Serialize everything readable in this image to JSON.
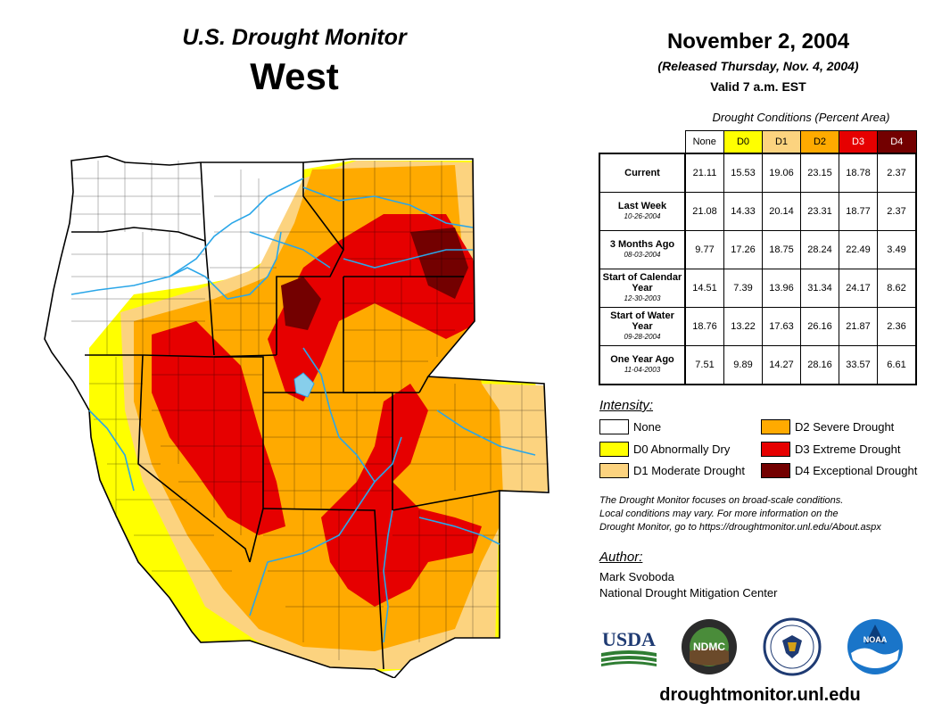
{
  "header": {
    "product": "U.S. Drought Monitor",
    "region": "West",
    "date": "November 2, 2004",
    "released": "(Released Thursday, Nov. 4, 2004)",
    "valid": "Valid 7 a.m. EST"
  },
  "table": {
    "caption": "Drought Conditions (Percent Area)",
    "columns": [
      "None",
      "D0",
      "D1",
      "D2",
      "D3",
      "D4"
    ],
    "column_colors": [
      "#ffffff",
      "#ffff00",
      "#fcd37f",
      "#ffaa00",
      "#e60000",
      "#730000"
    ],
    "rows": [
      {
        "label": "Current",
        "date": "",
        "values": [
          "21.11",
          "15.53",
          "19.06",
          "23.15",
          "18.78",
          "2.37"
        ]
      },
      {
        "label": "Last Week",
        "date": "10-26-2004",
        "values": [
          "21.08",
          "14.33",
          "20.14",
          "23.31",
          "18.77",
          "2.37"
        ]
      },
      {
        "label": "3 Months Ago",
        "date": "08-03-2004",
        "values": [
          "9.77",
          "17.26",
          "18.75",
          "28.24",
          "22.49",
          "3.49"
        ]
      },
      {
        "label": "Start of Calendar Year",
        "date": "12-30-2003",
        "values": [
          "14.51",
          "7.39",
          "13.96",
          "31.34",
          "24.17",
          "8.62"
        ]
      },
      {
        "label": "Start of Water Year",
        "date": "09-28-2004",
        "values": [
          "18.76",
          "13.22",
          "17.63",
          "26.16",
          "21.87",
          "2.36"
        ]
      },
      {
        "label": "One Year Ago",
        "date": "11-04-2003",
        "values": [
          "7.51",
          "9.89",
          "14.27",
          "28.16",
          "33.57",
          "6.61"
        ]
      }
    ]
  },
  "legend": {
    "title": "Intensity:",
    "items": [
      {
        "label": "None",
        "color": "#ffffff"
      },
      {
        "label": "D0 Abnormally Dry",
        "color": "#ffff00"
      },
      {
        "label": "D1 Moderate Drought",
        "color": "#fcd37f"
      },
      {
        "label": "D2 Severe Drought",
        "color": "#ffaa00"
      },
      {
        "label": "D3 Extreme Drought",
        "color": "#e60000"
      },
      {
        "label": "D4 Exceptional Drought",
        "color": "#730000"
      }
    ]
  },
  "note": {
    "line1": "The Drought Monitor focuses on broad-scale conditions.",
    "line2": "Local conditions may vary. For more information on the",
    "line3": "Drought Monitor, go to https://droughtmonitor.unl.edu/About.aspx"
  },
  "author": {
    "title": "Author:",
    "name": "Mark Svoboda",
    "org": "National Drought Mitigation Center"
  },
  "logos": {
    "usda": "USDA",
    "ndmc": "NDMC",
    "noaa": "NOAA"
  },
  "website": "droughtmonitor.unl.edu"
}
